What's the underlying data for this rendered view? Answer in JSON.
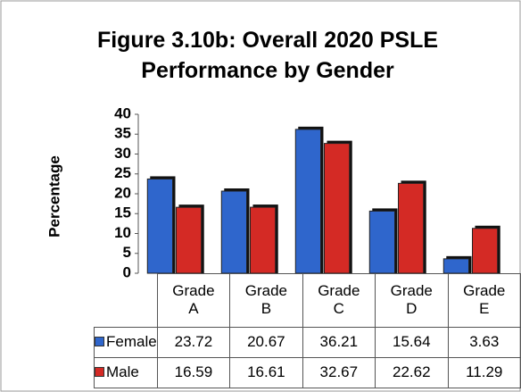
{
  "chart_data": {
    "type": "bar",
    "title": "Figure 3.10b: Overall 2020 PSLE Performance by Gender",
    "y_label": "Percentage",
    "categories": [
      "Grade A",
      "Grade B",
      "Grade C",
      "Grade D",
      "Grade E"
    ],
    "series": [
      {
        "name": "Female",
        "color": "#2f66cc",
        "values": [
          23.72,
          20.67,
          36.21,
          15.64,
          3.63
        ]
      },
      {
        "name": "Male",
        "color": "#d42a25",
        "values": [
          16.59,
          16.61,
          32.67,
          22.62,
          11.29
        ]
      }
    ],
    "ylim": [
      0,
      40
    ],
    "yticks": [
      0,
      5,
      10,
      15,
      20,
      25,
      30,
      35,
      40
    ],
    "grid": false
  }
}
